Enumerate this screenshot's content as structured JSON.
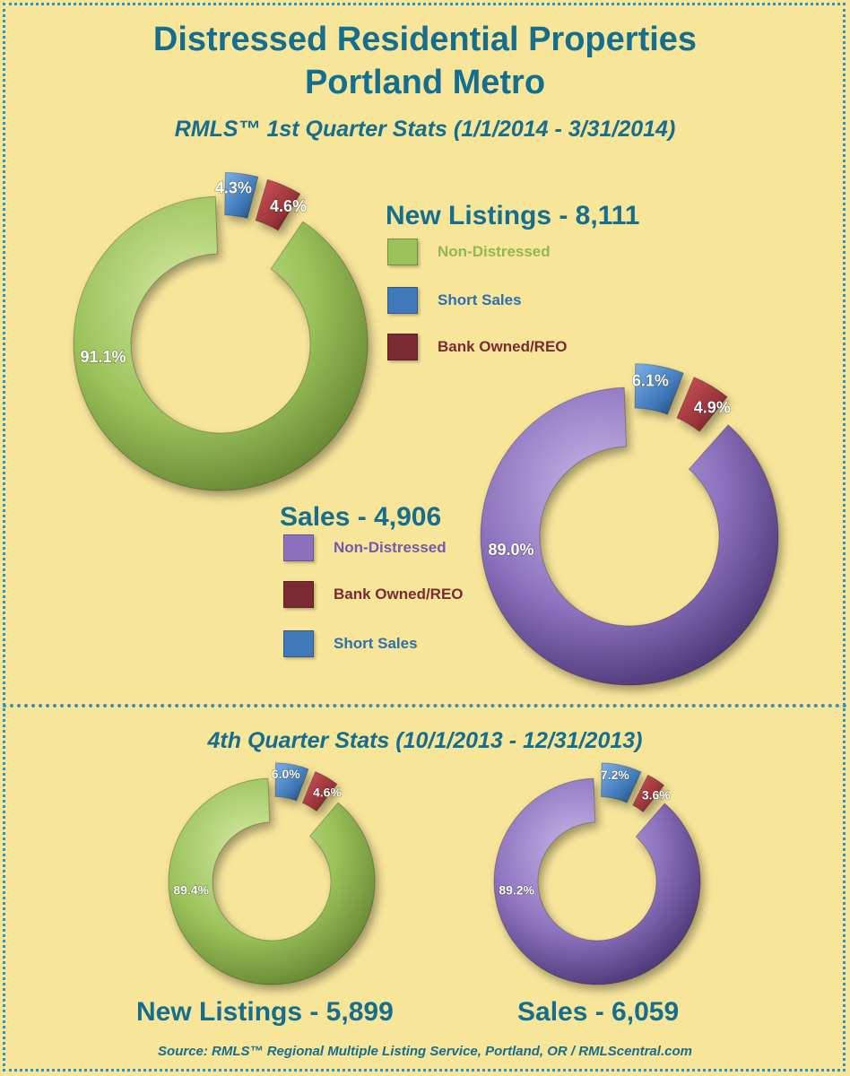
{
  "title_line1": "Distressed Residential Properties",
  "title_line2": "Portland Metro",
  "subtitle_q1": "RMLS™ 1st Quarter Stats (1/1/2014 - 3/31/2014)",
  "subtitle_q4": "4th Quarter Stats (10/1/2013 - 12/31/2013)",
  "source": "Source: RMLS™ Regional Multiple Listing Service, Portland, OR / RMLScentral.com",
  "colors": {
    "non_distressed_listings": "#9bc25a",
    "non_distressed_sales": "#8c72bd",
    "short_sales": "#3f79b9",
    "bank_owned": "#7a2a30",
    "heading": "#166e8f"
  },
  "chart_data": [
    {
      "type": "pie",
      "title": "New Listings - 8,111",
      "categories": [
        "Non-Distressed",
        "Short Sales",
        "Bank Owned/REO"
      ],
      "values": [
        91.1,
        4.3,
        4.6
      ],
      "labels": [
        "91.1%",
        "4.3%",
        "4.6%"
      ],
      "legend": [
        "Non-Distressed",
        "Short Sales",
        "Bank Owned/REO"
      ],
      "legend_placement": "right",
      "donut": true
    },
    {
      "type": "pie",
      "title": "Sales - 4,906",
      "categories": [
        "Non-Distressed",
        "Short Sales",
        "Bank Owned/REO"
      ],
      "values": [
        89.0,
        6.1,
        4.9
      ],
      "labels": [
        "89.0%",
        "6.1%",
        "4.9%"
      ],
      "legend": [
        "Non-Distressed",
        "Bank Owned/REO",
        "Short Sales"
      ],
      "legend_placement": "left",
      "donut": true
    },
    {
      "type": "pie",
      "title": "New Listings - 5,899",
      "categories": [
        "Non-Distressed",
        "Short Sales",
        "Bank Owned/REO"
      ],
      "values": [
        89.4,
        6.0,
        4.6
      ],
      "labels": [
        "89.4%",
        "6.0%",
        "4.6%"
      ],
      "legend_placement": "none",
      "donut": true
    },
    {
      "type": "pie",
      "title": "Sales - 6,059",
      "categories": [
        "Non-Distressed",
        "Short Sales",
        "Bank Owned/REO"
      ],
      "values": [
        89.2,
        7.2,
        3.6
      ],
      "labels": [
        "89.2%",
        "7.2%",
        "3.6%"
      ],
      "legend_placement": "none",
      "donut": true
    }
  ]
}
